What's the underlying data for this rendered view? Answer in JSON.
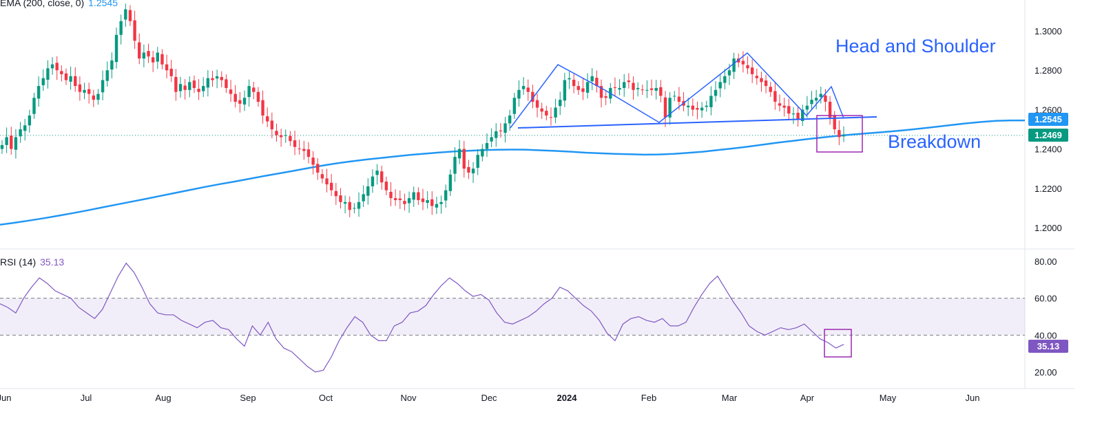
{
  "price_pane": {
    "indicator": {
      "label": "EMA (200, close, 0)",
      "value": "1.2545",
      "color": "#2196f3"
    },
    "last_price_badge": {
      "value": "1.2469",
      "color": "#089981"
    },
    "ema_badge": {
      "value": "1.2545",
      "color": "#2196f3"
    },
    "annotations": {
      "pattern": "Head and Shoulder",
      "breakdown": "Breakdown"
    }
  },
  "rsi_pane": {
    "indicator": {
      "label": "RSI (14)",
      "value": "35.13",
      "color": "#7e57c2"
    },
    "badge": {
      "value": "35.13",
      "color": "#7e57c2"
    }
  },
  "chart_data": [
    {
      "type": "candlestick",
      "title": "",
      "ylim": [
        1.19,
        1.315
      ],
      "y_ticks": [
        "1.3000",
        "1.2800",
        "1.2600",
        "1.2400",
        "1.2200",
        "1.2000"
      ],
      "x_ticks": [
        "Jun",
        "Jul",
        "Aug",
        "Sep",
        "Oct",
        "Nov",
        "Dec",
        "2024",
        "Feb",
        "Mar",
        "Apr",
        "May",
        "Jun"
      ],
      "colors": {
        "up": "#089981",
        "down": "#f23645",
        "ema": "#2196f3",
        "pattern_lines": "#2962ff",
        "highlight_box": "#9c27b0"
      },
      "close": [
        1.242,
        1.246,
        1.24,
        1.246,
        1.25,
        1.252,
        1.257,
        1.266,
        1.272,
        1.276,
        1.281,
        1.283,
        1.28,
        1.278,
        1.275,
        1.277,
        1.272,
        1.269,
        1.27,
        1.268,
        1.265,
        1.268,
        1.275,
        1.28,
        1.285,
        1.298,
        1.305,
        1.311,
        1.305,
        1.295,
        1.286,
        1.289,
        1.287,
        1.284,
        1.289,
        1.283,
        1.28,
        1.277,
        1.269,
        1.273,
        1.27,
        1.274,
        1.271,
        1.269,
        1.272,
        1.276,
        1.275,
        1.277,
        1.275,
        1.271,
        1.268,
        1.264,
        1.263,
        1.266,
        1.272,
        1.269,
        1.264,
        1.257,
        1.254,
        1.25,
        1.247,
        1.246,
        1.247,
        1.244,
        1.241,
        1.24,
        1.239,
        1.236,
        1.232,
        1.228,
        1.225,
        1.222,
        1.219,
        1.216,
        1.213,
        1.213,
        1.209,
        1.21,
        1.213,
        1.217,
        1.221,
        1.226,
        1.229,
        1.223,
        1.219,
        1.215,
        1.214,
        1.214,
        1.212,
        1.215,
        1.218,
        1.214,
        1.213,
        1.214,
        1.211,
        1.212,
        1.213,
        1.219,
        1.227,
        1.236,
        1.24,
        1.23,
        1.228,
        1.23,
        1.237,
        1.24,
        1.243,
        1.246,
        1.249,
        1.249,
        1.253,
        1.257,
        1.266,
        1.27,
        1.272,
        1.269,
        1.264,
        1.261,
        1.259,
        1.257,
        1.256,
        1.261,
        1.265,
        1.275,
        1.276,
        1.272,
        1.27,
        1.269,
        1.274,
        1.277,
        1.272,
        1.266,
        1.266,
        1.271,
        1.271,
        1.271,
        1.274,
        1.274,
        1.27,
        1.271,
        1.27,
        1.27,
        1.27,
        1.271,
        1.267,
        1.256,
        1.266,
        1.267,
        1.264,
        1.262,
        1.262,
        1.26,
        1.26,
        1.261,
        1.262,
        1.267,
        1.27,
        1.274,
        1.277,
        1.28,
        1.286,
        1.284,
        1.283,
        1.281,
        1.278,
        1.276,
        1.274,
        1.272,
        1.269,
        1.264,
        1.262,
        1.261,
        1.258,
        1.258,
        1.255,
        1.26,
        1.262,
        1.265,
        1.266,
        1.268,
        1.264,
        1.256,
        1.25,
        1.246,
        1.247
      ],
      "ema_200": [
        1.2015,
        1.2025,
        1.2036,
        1.2048,
        1.2061,
        1.2074,
        1.2088,
        1.2103,
        1.2118,
        1.2132,
        1.2147,
        1.2162,
        1.2177,
        1.2192,
        1.2207,
        1.2221,
        1.2234,
        1.2248,
        1.2262,
        1.2275,
        1.2288,
        1.2302,
        1.2315,
        1.2327,
        1.2337,
        1.2346,
        1.2354,
        1.2362,
        1.237,
        1.2376,
        1.2382,
        1.2387,
        1.2391,
        1.2394,
        1.2396,
        1.2397,
        1.2396,
        1.2393,
        1.239,
        1.2386,
        1.2381,
        1.2378,
        1.2375,
        1.2373,
        1.2371,
        1.2372,
        1.2375,
        1.238,
        1.2386,
        1.2394,
        1.2402,
        1.2411,
        1.2421,
        1.2431,
        1.244,
        1.2449,
        1.2457,
        1.2465,
        1.2472,
        1.2478,
        1.2484,
        1.249,
        1.2497,
        1.2505,
        1.2513,
        1.2522,
        1.253,
        1.2537,
        1.2543,
        1.2545,
        1.2545
      ],
      "rsi_14": [
        57,
        55,
        52,
        60,
        66,
        71,
        68,
        64,
        62,
        60,
        55,
        52,
        49,
        54,
        63,
        72,
        79,
        74,
        66,
        57,
        52,
        51,
        51,
        48,
        46,
        44,
        47,
        48,
        44,
        43,
        38,
        34,
        45,
        40,
        47,
        38,
        33,
        31,
        27,
        23,
        20,
        21,
        28,
        37,
        44,
        50,
        47,
        40,
        37,
        37,
        45,
        47,
        52,
        53,
        56,
        62,
        67,
        71,
        68,
        64,
        61,
        62,
        59,
        52,
        47,
        46,
        48,
        50,
        53,
        57,
        60,
        66,
        64,
        60,
        56,
        53,
        48,
        41,
        37,
        46,
        49,
        50,
        48,
        47,
        49,
        45,
        45,
        47,
        55,
        62,
        68,
        72,
        65,
        58,
        52,
        45,
        42,
        40,
        42,
        44,
        43,
        44,
        46,
        42,
        38,
        36,
        33,
        35
      ]
    }
  ]
}
